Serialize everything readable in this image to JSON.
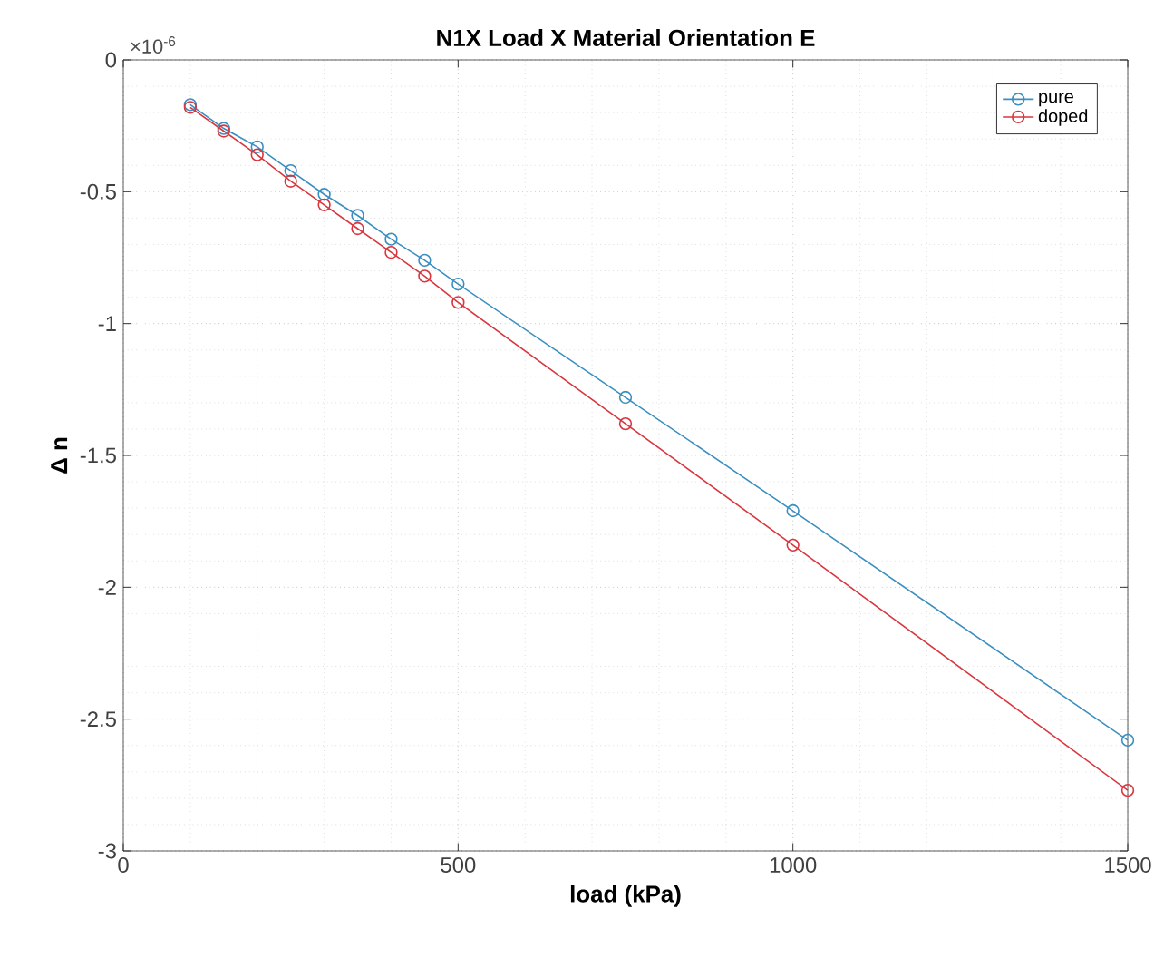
{
  "chart_data": {
    "type": "line",
    "title": "N1X   Load X   Material Orientation E",
    "xlabel": "load (kPa)",
    "ylabel": "Δ n",
    "annotations": [
      "×10$^{-6}$"
    ],
    "x": [
      100,
      150,
      200,
      250,
      300,
      350,
      400,
      450,
      500,
      750,
      1000,
      1500
    ],
    "series": [
      {
        "name": "pure",
        "color": "#3b8fc0",
        "values": [
          -0.17,
          -0.26,
          -0.33,
          -0.42,
          -0.51,
          -0.59,
          -0.68,
          -0.76,
          -0.85,
          -1.28,
          -1.71,
          -2.58
        ]
      },
      {
        "name": "doped",
        "color": "#d9363e",
        "values": [
          -0.18,
          -0.27,
          -0.36,
          -0.46,
          -0.55,
          -0.64,
          -0.73,
          -0.82,
          -0.92,
          -1.38,
          -1.84,
          -2.77
        ]
      }
    ],
    "xlim": [
      0,
      1500
    ],
    "xticks": [
      0,
      500,
      1000,
      1500
    ],
    "ylim": [
      -3,
      0
    ],
    "yticks": [
      -3,
      -2.5,
      -2,
      -1.5,
      -1,
      -0.5,
      0
    ],
    "grid": true,
    "legend": "top right",
    "marker": "circle",
    "line_style": "solid"
  }
}
